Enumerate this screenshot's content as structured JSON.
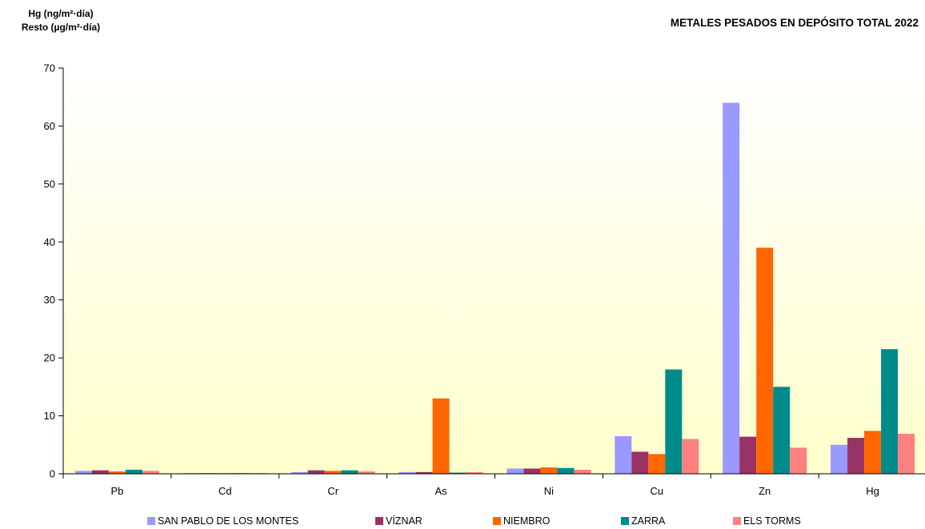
{
  "header": {
    "ylabel_line1": "Hg (ng/m²·día)",
    "ylabel_line2": "Resto (µg/m²·día)",
    "title": "METALES PESADOS EN DEPÓSITO TOTAL 2022"
  },
  "chart_data": {
    "type": "bar",
    "title": "METALES PESADOS EN DEPÓSITO TOTAL 2022",
    "ylabel": "Hg (ng/m²·día) / Resto (µg/m²·día)",
    "xlabel": "",
    "ylim": [
      0,
      70
    ],
    "yticks": [
      0,
      10,
      20,
      30,
      40,
      50,
      60,
      70
    ],
    "grid": false,
    "legend_position": "bottom",
    "categories": [
      "Pb",
      "Cd",
      "Cr",
      "As",
      "Ni",
      "Cu",
      "Zn",
      "Hg"
    ],
    "series": [
      {
        "name": "SAN PABLO DE LOS MONTES",
        "color": "#9999ff",
        "values": [
          0.5,
          0.05,
          0.3,
          0.3,
          0.9,
          6.5,
          64.0,
          5.0
        ]
      },
      {
        "name": "VÍZNAR",
        "color": "#993366",
        "values": [
          0.6,
          0.05,
          0.6,
          0.3,
          0.9,
          3.8,
          6.4,
          6.2
        ]
      },
      {
        "name": "NIEMBRO",
        "color": "#ff6600",
        "values": [
          0.4,
          0.05,
          0.5,
          13.0,
          1.1,
          3.4,
          39.0,
          7.4
        ]
      },
      {
        "name": "ZARRA",
        "color": "#008b8b",
        "values": [
          0.7,
          0.05,
          0.6,
          0.2,
          1.0,
          18.0,
          15.0,
          21.5
        ]
      },
      {
        "name": "ELS TORMS",
        "color": "#ff8080",
        "values": [
          0.5,
          0.05,
          0.4,
          0.3,
          0.7,
          6.0,
          4.5,
          6.9
        ]
      }
    ]
  }
}
